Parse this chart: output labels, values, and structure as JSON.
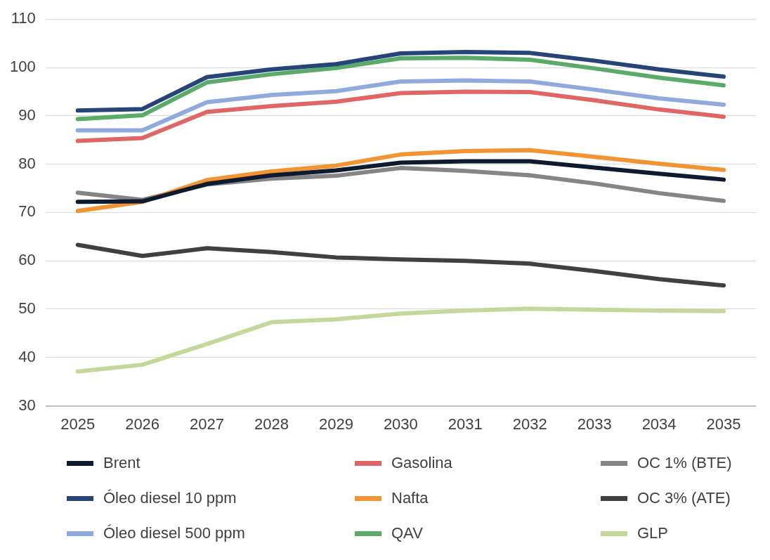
{
  "chart_data": {
    "type": "line",
    "categories": [
      "2025",
      "2026",
      "2027",
      "2028",
      "2029",
      "2030",
      "2031",
      "2032",
      "2033",
      "2034",
      "2035"
    ],
    "ylim": [
      30,
      110
    ],
    "yticks": [
      30,
      40,
      50,
      60,
      70,
      80,
      90,
      100,
      110
    ],
    "grid": "y",
    "legend": "bottom",
    "marker": "none",
    "line_style": "solid",
    "series": [
      {
        "name": "Brent",
        "color": "#0e1a2e",
        "values": [
          72.2,
          72.3,
          75.9,
          77.7,
          78.7,
          80.3,
          80.6,
          80.6,
          79.3,
          78,
          76.8
        ]
      },
      {
        "name": "Óleo diesel 10 ppm",
        "color": "#264478",
        "values": [
          91.1,
          91.4,
          98,
          99.6,
          100.7,
          102.9,
          103.2,
          103,
          101.4,
          99.6,
          98.1
        ]
      },
      {
        "name": "Óleo diesel 500 ppm",
        "color": "#8faadc",
        "values": [
          87,
          87,
          92.8,
          94.3,
          95.1,
          97.1,
          97.3,
          97.1,
          95.4,
          93.6,
          92.3
        ]
      },
      {
        "name": "Gasolina",
        "color": "#e06666",
        "values": [
          84.8,
          85.4,
          90.8,
          92,
          92.9,
          94.7,
          95,
          94.9,
          93.2,
          91.3,
          89.8
        ]
      },
      {
        "name": "Nafta",
        "color": "#f39432",
        "values": [
          70.3,
          72.2,
          76.7,
          78.5,
          79.7,
          82,
          82.7,
          82.9,
          81.5,
          80.1,
          78.8
        ]
      },
      {
        "name": "QAV",
        "color": "#5aaa6a",
        "values": [
          89.3,
          90.1,
          96.9,
          98.6,
          99.9,
          101.9,
          102,
          101.6,
          99.8,
          97.9,
          96.3
        ]
      },
      {
        "name": "OC 1% (BTE)",
        "color": "#858585",
        "values": [
          74.1,
          72.6,
          75.8,
          77,
          77.6,
          79.2,
          78.6,
          77.7,
          76,
          74,
          72.4
        ]
      },
      {
        "name": "OC 3% (ATE)",
        "color": "#404040",
        "values": [
          63.3,
          61,
          62.6,
          61.8,
          60.7,
          60.3,
          60,
          59.4,
          57.9,
          56.2,
          54.9
        ]
      },
      {
        "name": "GLP",
        "color": "#c5d89a",
        "values": [
          37.1,
          38.5,
          42.8,
          47.3,
          47.9,
          49.1,
          49.7,
          50.1,
          49.9,
          49.7,
          49.6
        ]
      }
    ]
  }
}
